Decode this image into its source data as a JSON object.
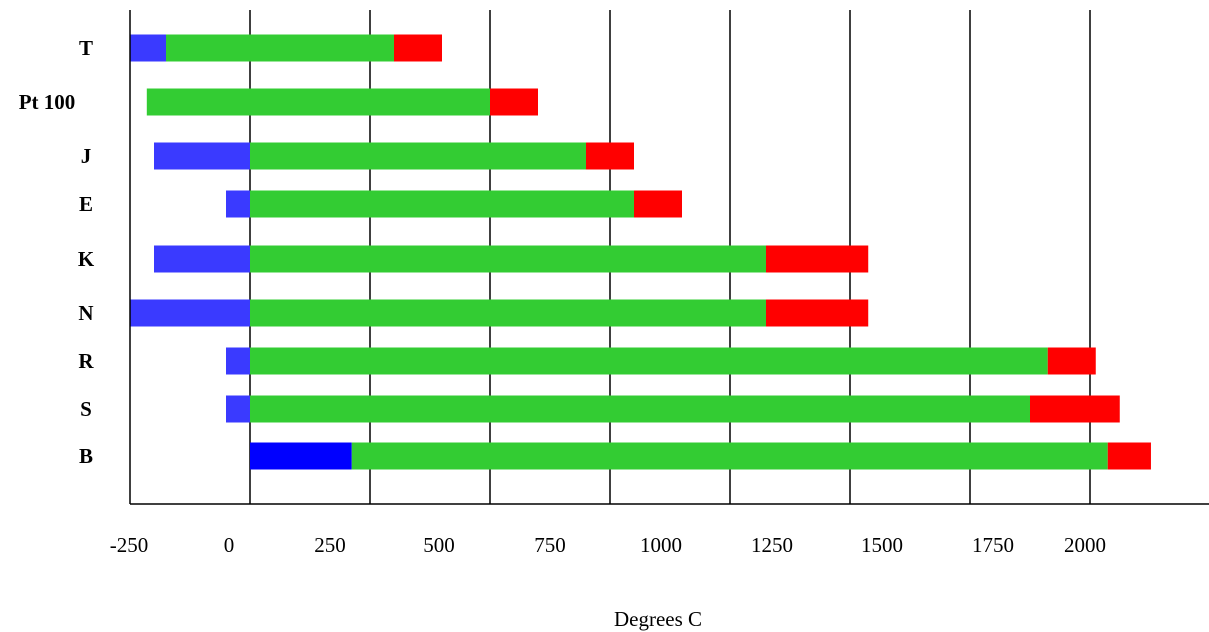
{
  "chart_data": {
    "type": "bar",
    "orientation": "horizontal",
    "stacked_ranges": true,
    "xlabel": "Degrees C",
    "ylabel": "",
    "title": "",
    "xlim": [
      -250,
      2250
    ],
    "xticks": [
      -250,
      0,
      250,
      500,
      750,
      1000,
      1250,
      1500,
      1750,
      2000
    ],
    "grid": "vertical",
    "categories": [
      "T",
      "Pt 100",
      "J",
      "E",
      "K",
      "N",
      "R",
      "S",
      "B"
    ],
    "segments": [
      {
        "color": "#3a3aff",
        "ranges": [
          [
            -250,
            -175
          ],
          null,
          [
            -200,
            0
          ],
          [
            -50,
            0
          ],
          [
            -200,
            0
          ],
          [
            -250,
            0
          ],
          [
            -50,
            0
          ],
          [
            -50,
            0
          ],
          null
        ]
      },
      {
        "color": "#0000ff",
        "ranges": [
          null,
          null,
          null,
          null,
          null,
          null,
          null,
          null,
          [
            0,
            212
          ]
        ]
      },
      {
        "color": "#33cc33",
        "ranges": [
          [
            -175,
            300
          ],
          [
            -215,
            500
          ],
          [
            0,
            700
          ],
          [
            0,
            800
          ],
          [
            0,
            1075
          ],
          [
            0,
            1075
          ],
          [
            0,
            1662
          ],
          [
            0,
            1625
          ],
          [
            212,
            1787
          ]
        ]
      },
      {
        "color": "#ff0000",
        "ranges": [
          [
            300,
            400
          ],
          [
            500,
            600
          ],
          [
            700,
            800
          ],
          [
            800,
            900
          ],
          [
            1075,
            1288
          ],
          [
            1075,
            1288
          ],
          [
            1662,
            1762
          ],
          [
            1625,
            1812
          ],
          [
            1787,
            1877
          ]
        ]
      }
    ]
  }
}
